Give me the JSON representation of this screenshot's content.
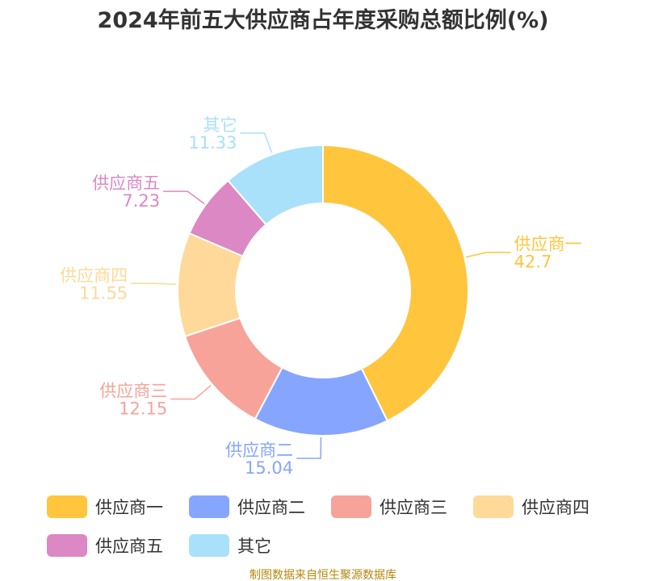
{
  "chart_data": {
    "type": "pie",
    "title": "2024年前五大供应商占年度采购总额比例(%)",
    "categories": [
      "供应商一",
      "供应商二",
      "供应商三",
      "供应商四",
      "供应商五",
      "其它"
    ],
    "values": [
      42.7,
      15.04,
      12.15,
      11.55,
      7.23,
      11.33
    ],
    "value_labels": [
      "42.7",
      "15.04",
      "12.15",
      "11.55",
      "7.23",
      "11.33"
    ],
    "colors": [
      "#FFC53D",
      "#85A5FF",
      "#F7A399",
      "#FFD999",
      "#DB88C4",
      "#A9E0FA"
    ],
    "donut": true,
    "legend_position": "bottom"
  },
  "footer": {
    "source": "制图数据来自恒生聚源数据库"
  }
}
